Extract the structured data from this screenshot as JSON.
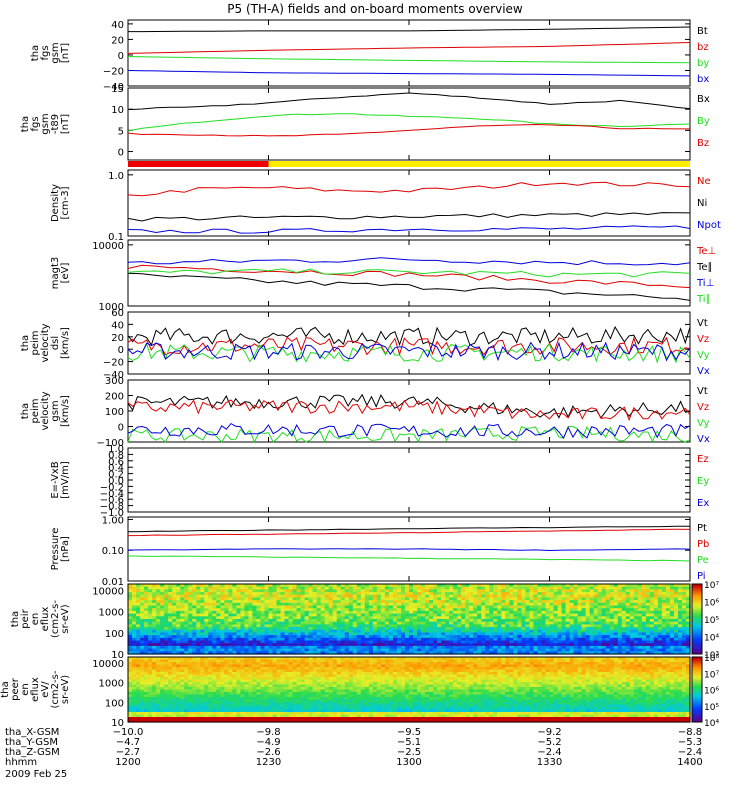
{
  "title": "P5 (TH-A) fields and on-board moments overview",
  "colors": {
    "black": "#000000",
    "red": "#e00000",
    "green": "#22dd22",
    "blue": "#0000dd",
    "yellow": "#ffee00",
    "bar_red": "#ee0000",
    "dark_yellow": "#999900"
  },
  "chart_data": [
    {
      "id": "fgs_gsm",
      "type": "line",
      "ylabel": [
        "tha",
        "fgs",
        "gsm",
        "[nT]"
      ],
      "ylim": [
        -40,
        45
      ],
      "ytick_values": [
        -40,
        -20,
        0,
        20,
        40
      ],
      "ytick_labels": [
        "−40",
        "−20",
        "0",
        "20",
        "40"
      ],
      "series": [
        {
          "name": "Bt",
          "color": "black",
          "x": [
            1200,
            1230,
            1300,
            1330,
            1400
          ],
          "values": [
            30,
            31,
            31,
            33,
            36
          ]
        },
        {
          "name": "bz",
          "color": "red",
          "x": [
            1200,
            1230,
            1300,
            1330,
            1400
          ],
          "values": [
            2,
            6,
            9,
            11,
            16
          ]
        },
        {
          "name": "by",
          "color": "green",
          "x": [
            1200,
            1230,
            1300,
            1330,
            1400
          ],
          "values": [
            -2,
            -5,
            -7,
            -9,
            -10
          ]
        },
        {
          "name": "bx",
          "color": "blue",
          "x": [
            1200,
            1230,
            1300,
            1330,
            1400
          ],
          "values": [
            -20,
            -23,
            -24,
            -25,
            -27
          ]
        }
      ]
    },
    {
      "id": "fgs_gsm_t89",
      "type": "line",
      "ylabel": [
        "tha",
        "fgs",
        "gsm",
        "-t89",
        "[nT]"
      ],
      "ylim": [
        -2,
        15
      ],
      "ytick_values": [
        0,
        5,
        10,
        15
      ],
      "ytick_labels": [
        "0",
        "5",
        "10",
        "15"
      ],
      "series": [
        {
          "name": "Bx",
          "color": "black",
          "x": [
            1200,
            1215,
            1230,
            1245,
            1300,
            1315,
            1330,
            1345,
            1400
          ],
          "values": [
            10,
            10.5,
            11.5,
            12.8,
            13.8,
            12.7,
            11.2,
            12,
            10
          ]
        },
        {
          "name": "By",
          "color": "green",
          "x": [
            1200,
            1215,
            1230,
            1245,
            1300,
            1315,
            1330,
            1345,
            1400
          ],
          "values": [
            5,
            7,
            8.5,
            9,
            8.3,
            7.8,
            6.5,
            6,
            6.5
          ]
        },
        {
          "name": "Bz",
          "color": "red",
          "x": [
            1200,
            1215,
            1230,
            1245,
            1300,
            1315,
            1330,
            1345,
            1400
          ],
          "values": [
            4.2,
            4,
            3.6,
            4,
            5,
            6,
            6.3,
            5.5,
            5.2
          ]
        }
      ]
    },
    {
      "id": "density",
      "type": "line",
      "yscale": "log",
      "ylabel": [
        "Density",
        "[cm-3]"
      ],
      "ylim": [
        0.1,
        1.2
      ],
      "ytick_values": [
        0.1,
        1.0
      ],
      "ytick_labels": [
        "0.1",
        "1.0"
      ],
      "series": [
        {
          "name": "Ne",
          "color": "red",
          "x": [
            1200,
            1215,
            1230,
            1245,
            1300,
            1315,
            1330,
            1345,
            1400
          ],
          "values": [
            0.45,
            0.58,
            0.62,
            0.55,
            0.55,
            0.62,
            0.75,
            0.7,
            0.68
          ]
        },
        {
          "name": "Ni",
          "color": "black",
          "x": [
            1200,
            1230,
            1300,
            1330,
            1400
          ],
          "values": [
            0.19,
            0.2,
            0.21,
            0.22,
            0.23
          ]
        },
        {
          "name": "Npot",
          "color": "blue",
          "x": [
            1200,
            1230,
            1300,
            1330,
            1400
          ],
          "values": [
            0.12,
            0.12,
            0.13,
            0.13,
            0.14
          ]
        }
      ]
    },
    {
      "id": "temperature",
      "type": "line",
      "yscale": "log",
      "ylabel": [
        "magt3",
        "[eV]"
      ],
      "ylim": [
        1000,
        12000
      ],
      "ytick_values": [
        1000,
        10000
      ],
      "ytick_labels": [
        "1000",
        "10000"
      ],
      "series": [
        {
          "name": "Te⊥",
          "color": "red",
          "x": [
            1200,
            1230,
            1300,
            1330,
            1400
          ],
          "values": [
            4500,
            3800,
            3300,
            2600,
            2100
          ]
        },
        {
          "name": "Te∥",
          "color": "black",
          "x": [
            1200,
            1230,
            1300,
            1330,
            1400
          ],
          "values": [
            3200,
            2500,
            2100,
            1700,
            1300
          ]
        },
        {
          "name": "Ti⊥",
          "color": "blue",
          "x": [
            1200,
            1230,
            1300,
            1330,
            1400
          ],
          "values": [
            5000,
            5500,
            5800,
            5200,
            5000
          ]
        },
        {
          "name": "Ti∥",
          "color": "green",
          "x": [
            1200,
            1230,
            1300,
            1330,
            1400
          ],
          "values": [
            3500,
            3700,
            3600,
            3300,
            3300
          ]
        }
      ]
    },
    {
      "id": "velocity_dsl",
      "type": "line",
      "ylabel": [
        "tha",
        "peim",
        "velocity",
        "dsl",
        "[km/s]"
      ],
      "ylim": [
        -40,
        60
      ],
      "ytick_values": [
        -40,
        -20,
        0,
        20,
        40,
        60
      ],
      "ytick_labels": [
        "−40",
        "−20",
        "0",
        "20",
        "40",
        "60"
      ],
      "series": [
        {
          "name": "Vt",
          "color": "black",
          "x": [
            1200,
            1230,
            1300,
            1330,
            1400
          ],
          "values": [
            20,
            22,
            21,
            20,
            24
          ]
        },
        {
          "name": "Vz",
          "color": "red",
          "x": [
            1200,
            1230,
            1300,
            1330,
            1400
          ],
          "values": [
            5,
            6,
            5,
            5,
            6
          ]
        },
        {
          "name": "Vy",
          "color": "green",
          "x": [
            1200,
            1230,
            1300,
            1330,
            1400
          ],
          "values": [
            -5,
            -6,
            -6,
            -5,
            -8
          ]
        },
        {
          "name": "Vx",
          "color": "blue",
          "x": [
            1200,
            1230,
            1300,
            1330,
            1400
          ],
          "values": [
            -3,
            -4,
            -3,
            -3,
            -4
          ]
        }
      ]
    },
    {
      "id": "velocity_gsm",
      "type": "line",
      "ylabel": [
        "tha",
        "peim",
        "velocity",
        "gsm",
        "[km/s]"
      ],
      "ylim": [
        -100,
        300
      ],
      "ytick_values": [
        -100,
        0,
        100,
        200,
        300
      ],
      "ytick_labels": [
        "−100",
        "0",
        "100",
        "200",
        "300"
      ],
      "series": [
        {
          "name": "Vt",
          "color": "black",
          "x": [
            1200,
            1230,
            1300,
            1330,
            1400
          ],
          "values": [
            150,
            160,
            160,
            90,
            120
          ]
        },
        {
          "name": "Vz",
          "color": "red",
          "x": [
            1200,
            1230,
            1300,
            1330,
            1400
          ],
          "values": [
            120,
            130,
            130,
            70,
            100
          ]
        },
        {
          "name": "Vy",
          "color": "green",
          "x": [
            1200,
            1230,
            1300,
            1330,
            1400
          ],
          "values": [
            -60,
            -60,
            -60,
            -40,
            -60
          ]
        },
        {
          "name": "Vx",
          "color": "blue",
          "x": [
            1200,
            1230,
            1300,
            1330,
            1400
          ],
          "values": [
            -20,
            -20,
            -30,
            -30,
            -30
          ]
        }
      ]
    },
    {
      "id": "efield",
      "type": "line",
      "ylabel": [
        "E=-VxB",
        "[mV/m]"
      ],
      "ylim": [
        -1,
        1
      ],
      "ytick_values": [
        -1,
        -0.8,
        -0.6,
        -0.4,
        -0.2,
        0,
        0.2,
        0.4,
        0.6,
        0.8,
        1
      ],
      "ytick_labels": [
        "−1.0",
        "−0.8",
        "−0.6",
        "−0.4",
        "−0.2",
        "0.0",
        "0.2",
        "0.4",
        "0.6",
        "0.8",
        "1.0"
      ],
      "series": [
        {
          "name": "Ez",
          "color": "red",
          "x": [],
          "values": []
        },
        {
          "name": "Ey",
          "color": "green",
          "x": [],
          "values": []
        },
        {
          "name": "Ex",
          "color": "blue",
          "x": [],
          "values": []
        }
      ]
    },
    {
      "id": "pressure",
      "type": "line",
      "yscale": "log",
      "ylabel": [
        "Pressure",
        "[nPa]"
      ],
      "ylim": [
        0.01,
        1.2
      ],
      "ytick_values": [
        0.01,
        0.1,
        1.0
      ],
      "ytick_labels": [
        "0.01",
        "0.10",
        "1.00"
      ],
      "series": [
        {
          "name": "Pt",
          "color": "black",
          "x": [
            1200,
            1230,
            1300,
            1330,
            1400
          ],
          "values": [
            0.4,
            0.45,
            0.5,
            0.55,
            0.6
          ]
        },
        {
          "name": "Pb",
          "color": "red",
          "x": [
            1200,
            1230,
            1300,
            1330,
            1400
          ],
          "values": [
            0.3,
            0.33,
            0.37,
            0.42,
            0.48
          ]
        },
        {
          "name": "Pe",
          "color": "green",
          "x": [
            1200,
            1230,
            1300,
            1330,
            1400
          ],
          "values": [
            0.065,
            0.06,
            0.055,
            0.05,
            0.045
          ]
        },
        {
          "name": "Pi",
          "color": "blue",
          "x": [
            1200,
            1230,
            1300,
            1330,
            1400
          ],
          "values": [
            0.1,
            0.11,
            0.11,
            0.1,
            0.11
          ]
        }
      ]
    },
    {
      "id": "ion_spectrogram",
      "type": "heatmap",
      "yscale": "log",
      "ylabel": [
        "tha",
        "peir",
        "en",
        "eflux",
        "(cm2-s-",
        "sr-eV)"
      ],
      "ylim": [
        10,
        20000
      ],
      "ytick_values": [
        10,
        100,
        1000,
        10000
      ],
      "ytick_labels": [
        "10",
        "100",
        "1000",
        "10000"
      ],
      "colorbar": {
        "min_exp": 3,
        "max_exp": 7,
        "labels": [
          "10³",
          "10⁴",
          "10⁵",
          "10⁶",
          "10⁷"
        ]
      }
    },
    {
      "id": "electron_spectrogram",
      "type": "heatmap",
      "yscale": "log",
      "ylabel": [
        "tha",
        "peer",
        "en",
        "eflux",
        "eV/",
        "(cm2-s-",
        "sr-eV)"
      ],
      "ylim": [
        10,
        20000
      ],
      "ytick_values": [
        10,
        100,
        1000,
        10000
      ],
      "ytick_labels": [
        "10",
        "100",
        "1000",
        "10000"
      ],
      "colorbar": {
        "min_exp": 4,
        "max_exp": 8,
        "labels": [
          "10⁴",
          "10⁵",
          "10⁶",
          "10⁷",
          "10⁸"
        ]
      }
    }
  ],
  "status_bar": {
    "segments": [
      {
        "from": 1200,
        "to": 1230,
        "color": "bar_red"
      },
      {
        "from": 1230,
        "to": 1400,
        "color": "yellow"
      }
    ]
  },
  "time_axis": {
    "tick_values": [
      1200,
      1230,
      1300,
      1330,
      1400
    ],
    "rows": [
      {
        "label": "tha_X-GSM",
        "values": [
          "−10.0",
          "−9.8",
          "−9.5",
          "−9.2",
          "−8.8"
        ]
      },
      {
        "label": "tha_Y-GSM",
        "values": [
          "−4.7",
          "−4.9",
          "−5.1",
          "−5.2",
          "−5.3"
        ]
      },
      {
        "label": "tha_Z-GSM",
        "values": [
          "−2.7",
          "−2.6",
          "−2.5",
          "−2.4",
          "−2.4"
        ]
      },
      {
        "label": "hhmm",
        "values": [
          "1200",
          "1230",
          "1300",
          "1330",
          "1400"
        ]
      }
    ],
    "date": "2009 Feb 25"
  }
}
